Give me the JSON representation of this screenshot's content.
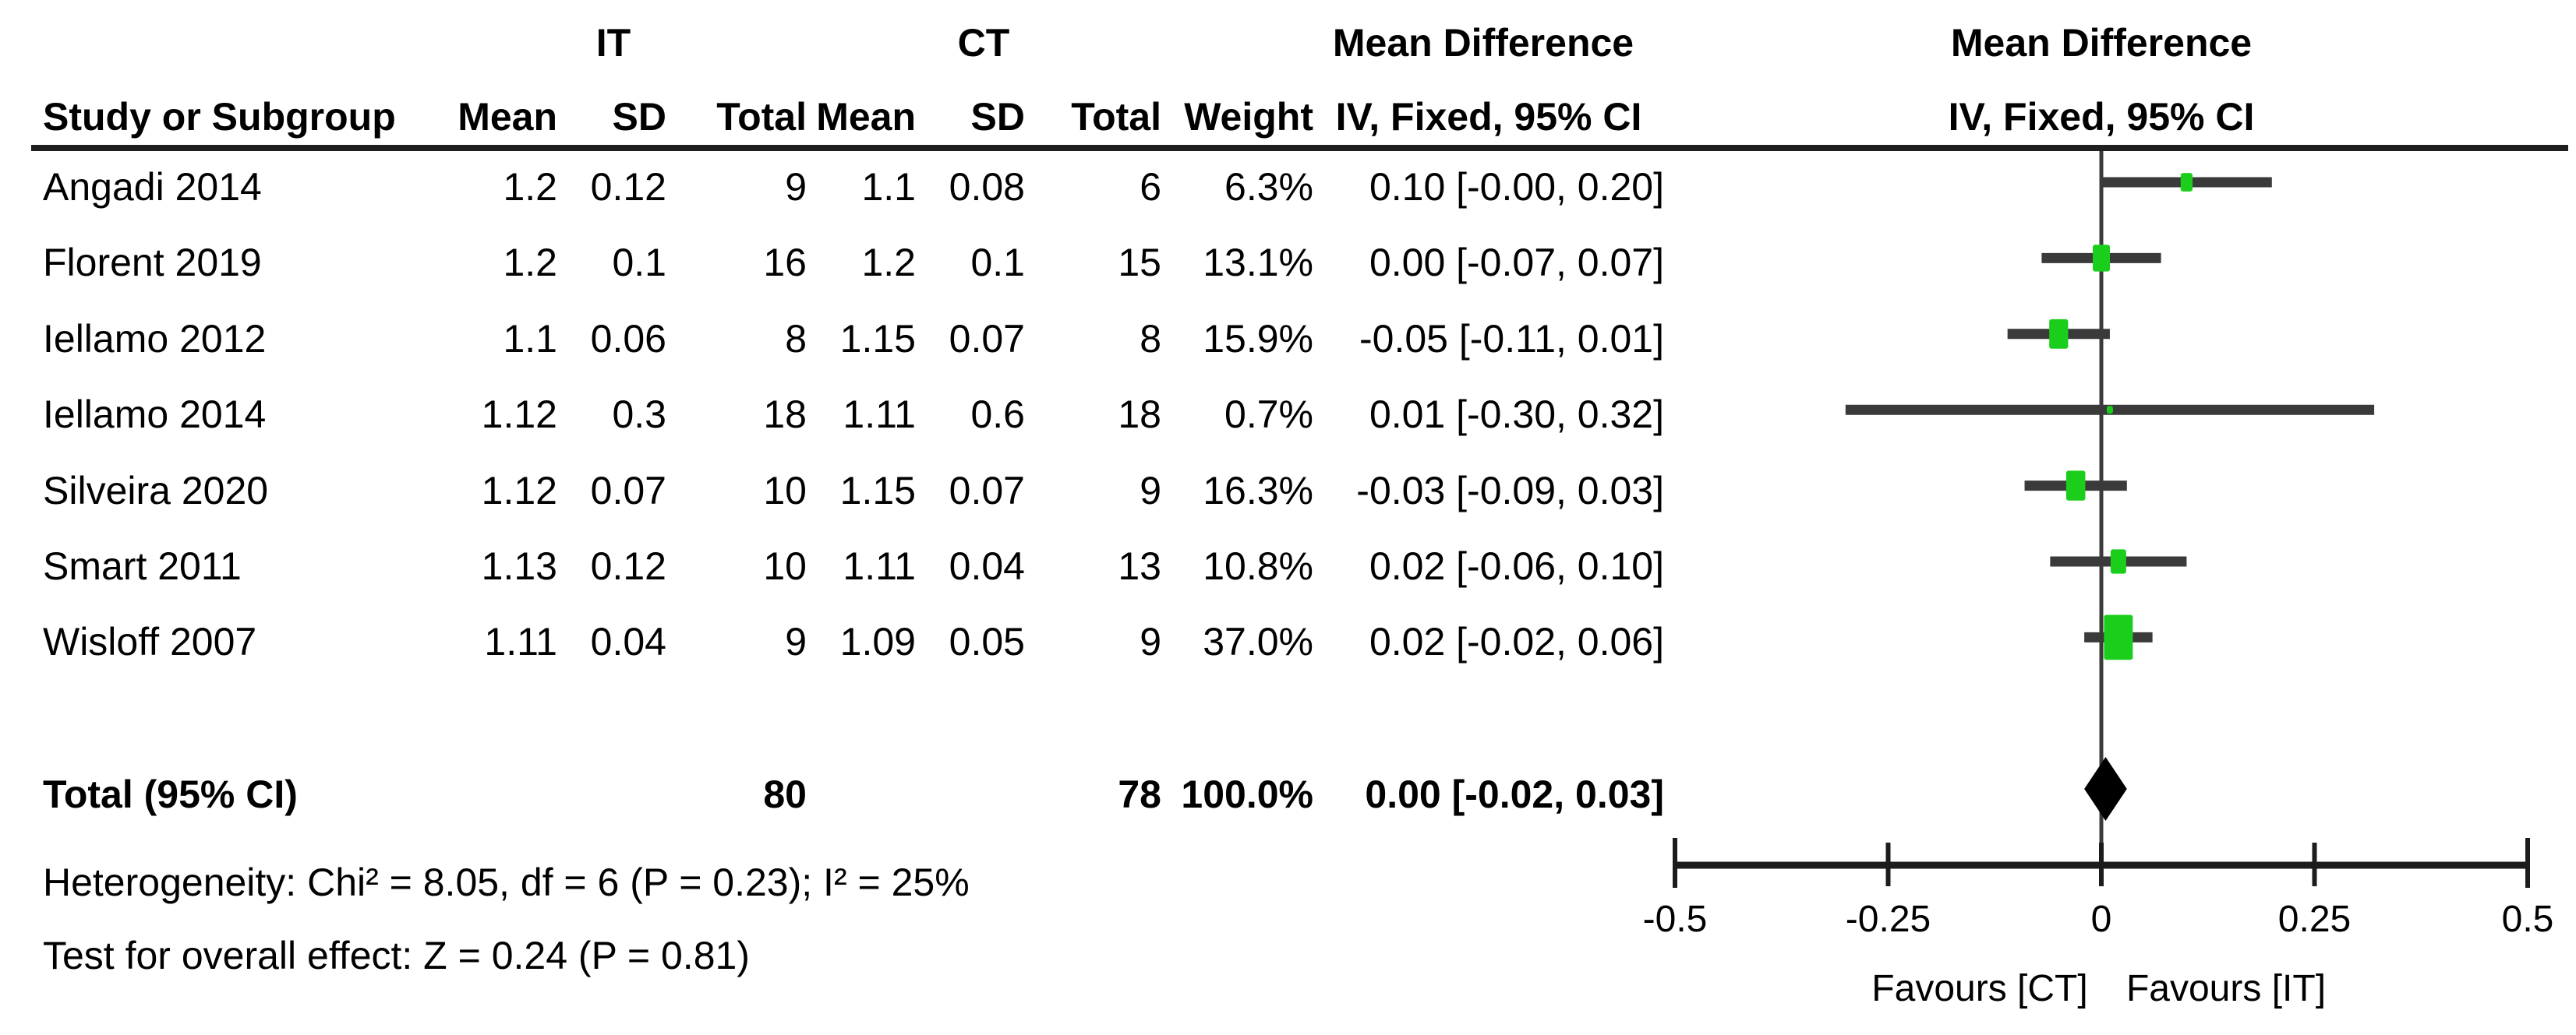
{
  "table": {
    "group_headers": {
      "it": "IT",
      "ct": "CT"
    },
    "effect_header_left": "Mean Difference",
    "effect_header_right": "Mean Difference",
    "effect_subheader_left": "IV, Fixed, 95% CI",
    "effect_subheader_right": "IV, Fixed, 95% CI",
    "columns": [
      "Study or Subgroup",
      "Mean",
      "SD",
      "Total",
      "Mean",
      "SD",
      "Total",
      "Weight",
      "IV, Fixed, 95% CI"
    ]
  },
  "totals": {
    "label": "Total (95% CI)",
    "it_total": "80",
    "ct_total": "78",
    "weight_label": "100.0%",
    "ci_label": "0.00 [-0.02, 0.03]",
    "md": 0.005,
    "ci_low": -0.02,
    "ci_high": 0.03
  },
  "stats": {
    "heterogeneity": "Heterogeneity: Chi² = 8.05, df = 6 (P = 0.23); I² = 25%",
    "overall_effect": "Test for overall effect: Z = 0.24 (P = 0.81)"
  },
  "colors": {
    "marker_green": "#1CCE1C",
    "ci_line": "#3A3A3A",
    "diamond": "#000000",
    "axis": "#1c1c1c",
    "zero_line": "#3b3b3b",
    "text": "#000000"
  },
  "chart_data": {
    "type": "scatter",
    "subtype": "forest-plot",
    "effect_measure": "Mean Difference",
    "model": "IV, Fixed, 95% CI",
    "xlim": [
      -0.5,
      0.5
    ],
    "ticks": [
      -0.5,
      -0.25,
      0,
      0.25,
      0.5
    ],
    "tick_labels": [
      "-0.5",
      "-0.25",
      "0",
      "0.25",
      "0.5"
    ],
    "favours_left": "Favours [CT]",
    "favours_right": "Favours [IT]",
    "studies": [
      {
        "name": "Angadi 2014",
        "it_mean": "1.2",
        "it_sd": "0.12",
        "it_total": "9",
        "ct_mean": "1.1",
        "ct_sd": "0.08",
        "ct_total": "6",
        "weight_pct": 6.3,
        "weight_label": "6.3%",
        "md": 0.1,
        "ci_low": -0.0,
        "ci_high": 0.2,
        "ci_label": "0.10 [-0.00, 0.20]"
      },
      {
        "name": "Florent 2019",
        "it_mean": "1.2",
        "it_sd": "0.1",
        "it_total": "16",
        "ct_mean": "1.2",
        "ct_sd": "0.1",
        "ct_total": "15",
        "weight_pct": 13.1,
        "weight_label": "13.1%",
        "md": 0.0,
        "ci_low": -0.07,
        "ci_high": 0.07,
        "ci_label": "0.00 [-0.07, 0.07]"
      },
      {
        "name": "Iellamo 2012",
        "it_mean": "1.1",
        "it_sd": "0.06",
        "it_total": "8",
        "ct_mean": "1.15",
        "ct_sd": "0.07",
        "ct_total": "8",
        "weight_pct": 15.9,
        "weight_label": "15.9%",
        "md": -0.05,
        "ci_low": -0.11,
        "ci_high": 0.01,
        "ci_label": "-0.05 [-0.11, 0.01]"
      },
      {
        "name": "Iellamo 2014",
        "it_mean": "1.12",
        "it_sd": "0.3",
        "it_total": "18",
        "ct_mean": "1.11",
        "ct_sd": "0.6",
        "ct_total": "18",
        "weight_pct": 0.7,
        "weight_label": "0.7%",
        "md": 0.01,
        "ci_low": -0.3,
        "ci_high": 0.32,
        "ci_label": "0.01 [-0.30, 0.32]"
      },
      {
        "name": "Silveira 2020",
        "it_mean": "1.12",
        "it_sd": "0.07",
        "it_total": "10",
        "ct_mean": "1.15",
        "ct_sd": "0.07",
        "ct_total": "9",
        "weight_pct": 16.3,
        "weight_label": "16.3%",
        "md": -0.03,
        "ci_low": -0.09,
        "ci_high": 0.03,
        "ci_label": "-0.03 [-0.09, 0.03]"
      },
      {
        "name": "Smart 2011",
        "it_mean": "1.13",
        "it_sd": "0.12",
        "it_total": "10",
        "ct_mean": "1.11",
        "ct_sd": "0.04",
        "ct_total": "13",
        "weight_pct": 10.8,
        "weight_label": "10.8%",
        "md": 0.02,
        "ci_low": -0.06,
        "ci_high": 0.1,
        "ci_label": "0.02 [-0.06, 0.10]"
      },
      {
        "name": "Wisloff 2007",
        "it_mean": "1.11",
        "it_sd": "0.04",
        "it_total": "9",
        "ct_mean": "1.09",
        "ct_sd": "0.05",
        "ct_total": "9",
        "weight_pct": 37.0,
        "weight_label": "37.0%",
        "md": 0.02,
        "ci_low": -0.02,
        "ci_high": 0.06,
        "ci_label": "0.02 [-0.02, 0.06]"
      }
    ],
    "total": {
      "label": "Total (95% CI)",
      "it_total": 80,
      "ct_total": 78,
      "weight_pct": 100.0,
      "md": 0.0,
      "ci_low": -0.02,
      "ci_high": 0.03
    }
  }
}
